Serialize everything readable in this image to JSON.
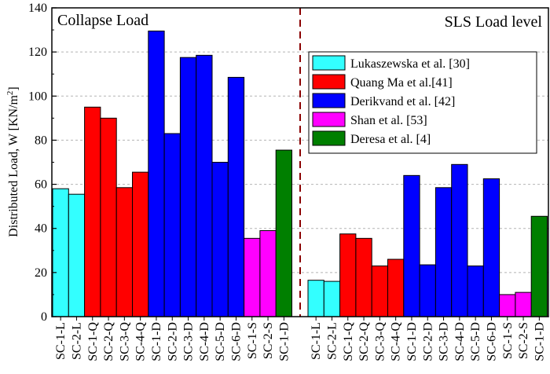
{
  "chart_data": {
    "type": "bar",
    "ylabel_main": "Distributed Load, W [KN/m",
    "ylabel_sup": "2",
    "ylabel_end": "]",
    "ylim": [
      0,
      140
    ],
    "yticks": [
      0,
      20,
      40,
      60,
      80,
      100,
      120,
      140
    ],
    "grid": "horizontal dashed",
    "legend_position": "right-center of SLS panel",
    "panels": [
      {
        "title": "Collapse Load",
        "categories": [
          "SC-1-L",
          "SC-2-L",
          "SC-1-Q",
          "SC-2-Q",
          "SC-3-Q",
          "SC-4-Q",
          "SC-1-D",
          "SC-2-D",
          "SC-3-D",
          "SC-4-D",
          "SC-5-D",
          "SC-6-D",
          "SC-1-S",
          "SC-2-S",
          "SC-1-D"
        ],
        "values": [
          58,
          55.5,
          95,
          90,
          58.5,
          65.5,
          129.5,
          83,
          117.5,
          118.5,
          70,
          108.5,
          35.5,
          39,
          75.5
        ],
        "groups": [
          0,
          0,
          1,
          1,
          1,
          1,
          2,
          2,
          2,
          2,
          2,
          2,
          3,
          3,
          4
        ]
      },
      {
        "title": "SLS Load level",
        "categories": [
          "SC-1-L",
          "SC-2-L",
          "SC-1-Q",
          "SC-2-Q",
          "SC-3-Q",
          "SC-4-Q",
          "SC-1-D",
          "SC-2-D",
          "SC-3-D",
          "SC-4-D",
          "SC-5-D",
          "SC-6-D",
          "SC-1-S",
          "SC-2-S",
          "SC-1-D"
        ],
        "values": [
          16.5,
          16,
          37.5,
          35.5,
          23,
          26,
          64,
          23.5,
          58.5,
          69,
          23,
          62.5,
          10,
          11,
          45.5
        ],
        "groups": [
          0,
          0,
          1,
          1,
          1,
          1,
          2,
          2,
          2,
          2,
          2,
          2,
          3,
          3,
          4
        ]
      }
    ],
    "series": [
      {
        "name": "Lukaszewska et al. [30]",
        "color": "#33ffff"
      },
      {
        "name": "Quang Ma et al.[41]",
        "color": "#ff0000"
      },
      {
        "name": "Derikvand et al. [42]",
        "color": "#0000ff"
      },
      {
        "name": "Shan et al. [53]",
        "color": "#ff00ff"
      },
      {
        "name": "Deresa et al. [4]",
        "color": "#007f00"
      }
    ]
  }
}
